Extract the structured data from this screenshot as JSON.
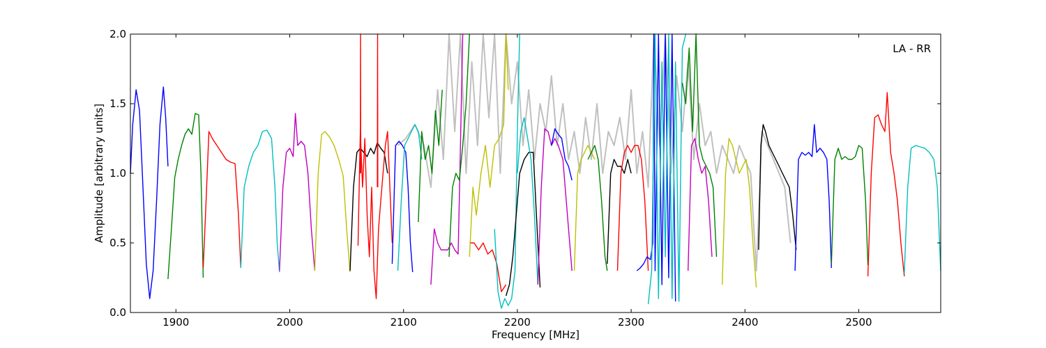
{
  "chart_data": {
    "type": "line",
    "title": "",
    "annotation": "LA - RR",
    "xlabel": "Frequency [MHz]",
    "ylabel": "Amplitude [arbitrary units]",
    "xlim": [
      1860,
      2572
    ],
    "ylim": [
      0.0,
      2.0
    ],
    "xticks": [
      1900,
      2000,
      2100,
      2200,
      2300,
      2400,
      2500
    ],
    "xtick_labels": [
      "1900",
      "2000",
      "2100",
      "2200",
      "2300",
      "2400",
      "2500"
    ],
    "yticks": [
      0.0,
      0.5,
      1.0,
      1.5,
      2.0
    ],
    "ytick_labels": [
      "0.0",
      "0.5",
      "1.0",
      "1.5",
      "2.0"
    ],
    "grid": false,
    "legend": "none",
    "background_series_color": "#c0c0c0",
    "series": [
      {
        "color": "#c0c0c0",
        "width": 2,
        "x": [
          2095,
          2102,
          2110,
          2118,
          2124,
          2130,
          2135,
          2140,
          2145,
          2150,
          2155,
          2160,
          2165,
          2170,
          2175,
          2180,
          2185,
          2190,
          2195,
          2200,
          2205,
          2210,
          2215,
          2220,
          2225,
          2230,
          2235,
          2240,
          2245,
          2250,
          2255,
          2260,
          2265,
          2270,
          2275,
          2280,
          2285,
          2290,
          2295,
          2300,
          2305,
          2310,
          2315,
          2320,
          2325,
          2330,
          2335,
          2340,
          2345,
          2350,
          2355,
          2360,
          2365,
          2370,
          2375,
          2380,
          2385,
          2390,
          2395,
          2400,
          2405,
          2410,
          2415,
          2420,
          2425,
          2430,
          2435,
          2440
        ],
        "y": [
          1.2,
          1.25,
          1.35,
          1.2,
          0.9,
          1.6,
          1.1,
          2.0,
          1.3,
          2.0,
          1.0,
          1.8,
          1.2,
          2.0,
          1.4,
          2.0,
          1.0,
          2.0,
          1.5,
          1.8,
          1.2,
          1.6,
          1.1,
          1.5,
          1.3,
          1.7,
          1.2,
          1.5,
          1.1,
          1.3,
          1.0,
          1.4,
          1.1,
          1.5,
          1.0,
          1.3,
          1.2,
          1.4,
          1.1,
          1.6,
          1.0,
          1.3,
          0.9,
          2.0,
          1.2,
          2.0,
          1.0,
          1.7,
          1.3,
          1.8,
          1.1,
          1.5,
          1.2,
          1.3,
          1.0,
          1.2,
          1.1,
          1.0,
          1.2,
          1.1,
          1.0,
          0.3,
          1.3,
          1.2,
          1.1,
          1.0,
          0.9,
          0.5
        ]
      },
      {
        "color": "#0000ff",
        "x": [
          1860,
          1862,
          1865,
          1868,
          1871,
          1874,
          1877,
          1880,
          1883,
          1886,
          1889,
          1891,
          1893
        ],
        "y": [
          1.0,
          1.35,
          1.6,
          1.45,
          0.9,
          0.35,
          0.1,
          0.3,
          0.8,
          1.35,
          1.62,
          1.4,
          1.05
        ]
      },
      {
        "color": "#008000",
        "x": [
          1893,
          1896,
          1899,
          1902,
          1905,
          1908,
          1911,
          1914,
          1917,
          1920,
          1922,
          1924
        ],
        "y": [
          0.24,
          0.6,
          0.97,
          1.1,
          1.2,
          1.28,
          1.32,
          1.28,
          1.43,
          1.42,
          1.0,
          0.25
        ]
      },
      {
        "color": "#ff0000",
        "x": [
          1924,
          1926,
          1929,
          1932,
          1936,
          1940,
          1944,
          1948,
          1952,
          1955,
          1957
        ],
        "y": [
          0.32,
          0.7,
          1.3,
          1.25,
          1.2,
          1.15,
          1.1,
          1.08,
          1.07,
          0.7,
          0.32
        ]
      },
      {
        "color": "#00bfbf",
        "x": [
          1957,
          1960,
          1964,
          1968,
          1972,
          1976,
          1980,
          1984,
          1987,
          1989,
          1991
        ],
        "y": [
          0.32,
          0.9,
          1.05,
          1.15,
          1.2,
          1.3,
          1.31,
          1.25,
          0.9,
          0.5,
          0.29
        ]
      },
      {
        "color": "#bf00bf",
        "x": [
          1991,
          1994,
          1997,
          2000,
          2003,
          2005,
          2007,
          2010,
          2013,
          2016,
          2019,
          2022
        ],
        "y": [
          0.3,
          0.9,
          1.15,
          1.18,
          1.12,
          1.43,
          1.2,
          1.23,
          1.2,
          1.0,
          0.6,
          0.3
        ]
      },
      {
        "color": "#bfbf00",
        "x": [
          2022,
          2025,
          2028,
          2031,
          2035,
          2039,
          2043,
          2047,
          2050,
          2053
        ],
        "y": [
          0.3,
          1.0,
          1.28,
          1.3,
          1.26,
          1.2,
          1.1,
          0.98,
          0.6,
          0.29
        ]
      },
      {
        "color": "#000000",
        "x": [
          2053,
          2056,
          2059,
          2062,
          2065,
          2068,
          2071,
          2074,
          2077,
          2080,
          2083,
          2086
        ],
        "y": [
          0.3,
          0.9,
          1.15,
          1.18,
          1.15,
          1.12,
          1.18,
          1.14,
          1.22,
          1.18,
          1.15,
          1.0
        ]
      },
      {
        "color": "#ff0000",
        "x": [
          2060,
          2062,
          2064,
          2066,
          2068,
          2070,
          2072,
          2074,
          2076,
          2078,
          2080,
          2082,
          2084,
          2086,
          2088,
          2090
        ],
        "y": [
          0.48,
          1.3,
          0.9,
          1.25,
          0.7,
          0.4,
          0.9,
          0.3,
          0.1,
          0.6,
          0.8,
          1.0,
          1.2,
          1.3,
          0.9,
          0.5
        ]
      },
      {
        "color": "#ff0000",
        "x": [
          2062,
          2062.2,
          2062.4
        ],
        "y": [
          1.0,
          2.0,
          1.0
        ]
      },
      {
        "color": "#ff0000",
        "x": [
          2077,
          2077.2,
          2077.4
        ],
        "y": [
          0.9,
          2.0,
          0.9
        ]
      },
      {
        "color": "#0000ff",
        "x": [
          2090,
          2093,
          2096,
          2099,
          2102,
          2104,
          2106,
          2108
        ],
        "y": [
          0.35,
          1.2,
          1.23,
          1.2,
          1.15,
          0.9,
          0.5,
          0.29
        ]
      },
      {
        "color": "#00bfbf",
        "x": [
          2095,
          2098,
          2101,
          2104,
          2107,
          2110,
          2113,
          2116
        ],
        "y": [
          0.3,
          0.8,
          1.2,
          1.25,
          1.3,
          1.35,
          1.3,
          1.1
        ]
      },
      {
        "color": "#008000",
        "x": [
          2113,
          2116,
          2119,
          2122,
          2125,
          2128,
          2131,
          2134
        ],
        "y": [
          0.65,
          1.3,
          1.1,
          1.2,
          1.0,
          1.45,
          1.2,
          1.6
        ]
      },
      {
        "color": "#bf00bf",
        "x": [
          2124,
          2127,
          2130,
          2133,
          2136,
          2139,
          2142,
          2145,
          2148,
          2150,
          2152
        ],
        "y": [
          0.2,
          0.6,
          0.5,
          0.45,
          0.45,
          0.45,
          0.5,
          0.45,
          0.42,
          1.2,
          2.0
        ]
      },
      {
        "color": "#008000",
        "x": [
          2140,
          2143,
          2146,
          2149,
          2152,
          2155,
          2158
        ],
        "y": [
          0.4,
          0.9,
          1.0,
          0.95,
          1.2,
          1.5,
          2.0
        ]
      },
      {
        "color": "#ff0000",
        "x": [
          2158,
          2162,
          2166,
          2170,
          2174,
          2178,
          2182,
          2186,
          2190
        ],
        "y": [
          0.5,
          0.5,
          0.45,
          0.5,
          0.42,
          0.45,
          0.35,
          0.15,
          0.2
        ]
      },
      {
        "color": "#bfbf00",
        "x": [
          2158,
          2161,
          2164,
          2168,
          2172,
          2176,
          2180,
          2184,
          2188,
          2190,
          2192
        ],
        "y": [
          0.4,
          0.9,
          0.7,
          1.0,
          1.2,
          0.9,
          1.2,
          1.25,
          1.35,
          2.0,
          1.6
        ]
      },
      {
        "color": "#00bfbf",
        "x": [
          2180,
          2183,
          2186,
          2189,
          2192,
          2195,
          2198,
          2200,
          2202
        ],
        "y": [
          0.6,
          0.15,
          0.03,
          0.1,
          0.05,
          0.1,
          0.3,
          1.3,
          2.0
        ]
      },
      {
        "color": "#000000",
        "x": [
          2190,
          2193,
          2196,
          2199,
          2202,
          2206,
          2210,
          2214,
          2218,
          2220
        ],
        "y": [
          0.12,
          0.2,
          0.4,
          0.7,
          1.0,
          1.1,
          1.15,
          1.15,
          0.5,
          0.18
        ]
      },
      {
        "color": "#00bfbf",
        "x": [
          2200,
          2203,
          2206,
          2209,
          2212,
          2215,
          2218
        ],
        "y": [
          1.0,
          1.3,
          1.4,
          1.25,
          1.1,
          0.7,
          0.2
        ]
      },
      {
        "color": "#bf00bf",
        "x": [
          2218,
          2221,
          2224,
          2227,
          2230,
          2233,
          2236,
          2240,
          2244,
          2248
        ],
        "y": [
          0.2,
          0.9,
          1.32,
          1.3,
          1.2,
          1.25,
          1.2,
          1.1,
          0.7,
          0.3
        ]
      },
      {
        "color": "#0000ff",
        "x": [
          2230,
          2233,
          2236,
          2239,
          2242,
          2245,
          2248
        ],
        "y": [
          1.2,
          1.32,
          1.28,
          1.25,
          1.1,
          1.05,
          0.95
        ]
      },
      {
        "color": "#bfbf00",
        "x": [
          2250,
          2253,
          2256,
          2259,
          2262,
          2265,
          2268
        ],
        "y": [
          0.3,
          1.0,
          1.1,
          1.15,
          1.2,
          1.15,
          1.1
        ]
      },
      {
        "color": "#008000",
        "x": [
          2262,
          2265,
          2268,
          2271,
          2274,
          2277,
          2279
        ],
        "y": [
          1.1,
          1.15,
          1.2,
          1.1,
          0.8,
          0.4,
          0.3
        ]
      },
      {
        "color": "#000000",
        "x": [
          2279,
          2282,
          2285,
          2288,
          2291,
          2294,
          2297,
          2300
        ],
        "y": [
          0.35,
          1.0,
          1.1,
          1.05,
          1.05,
          1.0,
          1.1,
          1.0
        ]
      },
      {
        "color": "#ff0000",
        "x": [
          2288,
          2291,
          2294,
          2297,
          2300,
          2303,
          2306,
          2309,
          2312,
          2315
        ],
        "y": [
          0.3,
          1.0,
          1.15,
          1.2,
          1.15,
          1.2,
          1.2,
          1.1,
          0.8,
          0.3
        ]
      },
      {
        "color": "#0000ff",
        "x": [
          2305,
          2308,
          2311,
          2314,
          2317,
          2319,
          2320,
          2321,
          2324,
          2327,
          2330,
          2333,
          2336,
          2339
        ],
        "y": [
          0.3,
          0.32,
          0.35,
          0.4,
          0.38,
          0.5,
          2.0,
          0.3,
          2.0,
          0.2,
          2.0,
          0.25,
          2.0,
          0.08
        ]
      },
      {
        "color": "#00bfbf",
        "x": [
          2315,
          2318,
          2321,
          2324,
          2327,
          2330,
          2333,
          2336,
          2339,
          2342,
          2345,
          2348
        ],
        "y": [
          0.06,
          0.3,
          2.0,
          0.1,
          1.8,
          0.4,
          2.0,
          0.1,
          1.8,
          0.08,
          1.9,
          2.0
        ]
      },
      {
        "color": "#008000",
        "x": [
          2345,
          2348,
          2351,
          2354,
          2357,
          2360,
          2363,
          2366,
          2369,
          2372,
          2375
        ],
        "y": [
          1.65,
          1.5,
          1.9,
          1.3,
          2.0,
          1.2,
          1.1,
          1.05,
          1.0,
          0.9,
          0.4
        ]
      },
      {
        "color": "#bf00bf",
        "x": [
          2350,
          2353,
          2356,
          2359,
          2362,
          2365,
          2368,
          2371
        ],
        "y": [
          0.3,
          1.2,
          1.25,
          1.1,
          1.0,
          1.05,
          0.8,
          0.4
        ]
      },
      {
        "color": "#bfbf00",
        "x": [
          2380,
          2383,
          2386,
          2389,
          2392,
          2395,
          2398,
          2401,
          2404,
          2407,
          2410
        ],
        "y": [
          0.2,
          1.0,
          1.25,
          1.2,
          1.1,
          1.0,
          1.05,
          1.1,
          0.9,
          0.5,
          0.18
        ]
      },
      {
        "color": "#000000",
        "x": [
          2412,
          2414,
          2416,
          2418,
          2421,
          2424,
          2427,
          2430,
          2433,
          2436,
          2439,
          2442,
          2445
        ],
        "y": [
          0.45,
          1.2,
          1.35,
          1.3,
          1.2,
          1.15,
          1.1,
          1.05,
          1.0,
          0.95,
          0.9,
          0.7,
          0.45
        ]
      },
      {
        "color": "#0000ff",
        "x": [
          2444,
          2447,
          2450,
          2453,
          2456,
          2459,
          2461,
          2463,
          2466,
          2469,
          2472,
          2474,
          2476
        ],
        "y": [
          0.3,
          1.1,
          1.15,
          1.13,
          1.15,
          1.12,
          1.35,
          1.15,
          1.18,
          1.15,
          1.1,
          0.8,
          0.32
        ]
      },
      {
        "color": "#008000",
        "x": [
          2476,
          2479,
          2482,
          2485,
          2488,
          2491,
          2494,
          2497,
          2500,
          2503,
          2506,
          2508
        ],
        "y": [
          0.35,
          1.1,
          1.18,
          1.1,
          1.12,
          1.1,
          1.1,
          1.12,
          1.2,
          1.18,
          0.8,
          0.34
        ]
      },
      {
        "color": "#ff0000",
        "x": [
          2508,
          2511,
          2514,
          2517,
          2520,
          2523,
          2525,
          2528,
          2531,
          2534,
          2537,
          2540
        ],
        "y": [
          0.26,
          1.0,
          1.4,
          1.42,
          1.35,
          1.3,
          1.58,
          1.15,
          1.0,
          0.8,
          0.5,
          0.26
        ]
      },
      {
        "color": "#00bfbf",
        "x": [
          2540,
          2543,
          2546,
          2550,
          2554,
          2558,
          2562,
          2566,
          2569,
          2572
        ],
        "y": [
          0.28,
          0.9,
          1.18,
          1.2,
          1.19,
          1.18,
          1.15,
          1.1,
          0.9,
          0.3
        ]
      }
    ]
  }
}
